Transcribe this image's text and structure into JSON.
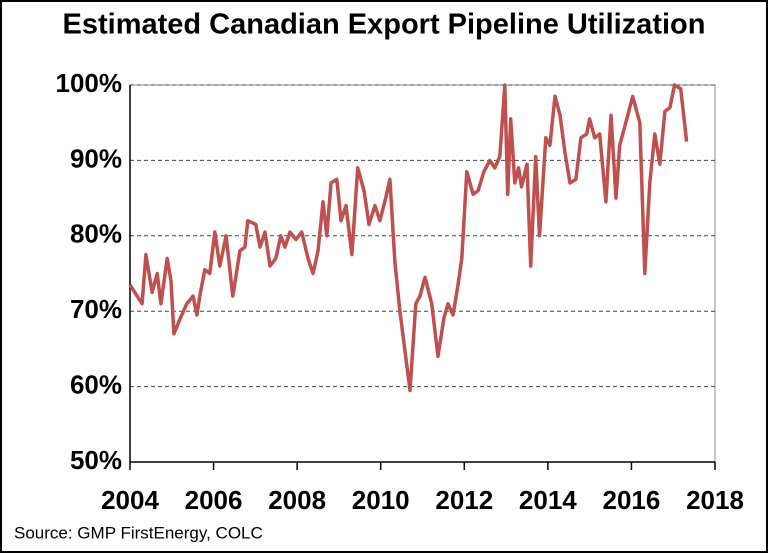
{
  "chart_data": {
    "type": "line",
    "title": "Estimated Canadian Export Pipeline Utilization",
    "source": "Source:  GMP FirstEnergy, COLC",
    "x": [
      2004.0,
      2004.17,
      2004.29,
      2004.38,
      2004.53,
      2004.65,
      2004.74,
      2004.89,
      2004.98,
      2005.05,
      2005.2,
      2005.36,
      2005.51,
      2005.6,
      2005.67,
      2005.79,
      2005.91,
      2006.03,
      2006.15,
      2006.3,
      2006.46,
      2006.63,
      2006.75,
      2006.82,
      2007.01,
      2007.11,
      2007.23,
      2007.35,
      2007.49,
      2007.61,
      2007.71,
      2007.83,
      2007.97,
      2008.11,
      2008.26,
      2008.38,
      2008.5,
      2008.62,
      2008.71,
      2008.81,
      2008.95,
      2009.05,
      2009.17,
      2009.31,
      2009.45,
      2009.6,
      2009.72,
      2009.86,
      2009.98,
      2010.12,
      2010.22,
      2010.34,
      2010.46,
      2010.7,
      2010.84,
      2010.94,
      2011.06,
      2011.22,
      2011.37,
      2011.51,
      2011.61,
      2011.73,
      2011.85,
      2011.94,
      2012.06,
      2012.21,
      2012.33,
      2012.47,
      2012.61,
      2012.73,
      2012.85,
      2012.97,
      2013.04,
      2013.11,
      2013.21,
      2013.3,
      2013.37,
      2013.5,
      2013.59,
      2013.71,
      2013.8,
      2013.95,
      2014.05,
      2014.17,
      2014.29,
      2014.41,
      2014.53,
      2014.67,
      2014.79,
      2014.93,
      2015.0,
      2015.12,
      2015.24,
      2015.39,
      2015.51,
      2015.63,
      2015.72,
      2015.89,
      2016.03,
      2016.2,
      2016.32,
      2016.44,
      2016.56,
      2016.68,
      2016.8,
      2016.92,
      2017.03,
      2017.18,
      2017.32
    ],
    "series": [
      {
        "color": "#c0504d",
        "values": [
          73.5,
          72,
          71,
          77.5,
          72.5,
          75,
          71,
          77,
          74,
          67,
          69,
          71,
          72,
          69.5,
          72,
          75.5,
          75,
          80.5,
          76,
          80,
          72,
          78,
          78.5,
          82,
          81.5,
          78.5,
          80.5,
          76,
          77,
          80,
          78.5,
          80.5,
          79.5,
          80.5,
          77,
          75,
          78,
          84.5,
          80,
          87,
          87.5,
          82,
          84,
          77.5,
          89,
          86,
          81.5,
          84,
          82,
          85,
          87.5,
          76.5,
          70,
          59.5,
          71,
          72,
          74.5,
          71,
          64,
          69,
          71,
          69.5,
          73.5,
          77,
          88.5,
          85.5,
          86,
          88.5,
          90,
          89,
          90.5,
          100,
          85.5,
          95.5,
          87,
          89,
          86.5,
          89.5,
          76,
          90.5,
          80,
          93,
          92,
          98.5,
          96,
          91,
          87,
          87.5,
          93,
          93.5,
          95.5,
          93,
          93.5,
          84.5,
          96,
          85,
          92,
          95.5,
          98.5,
          95,
          75,
          87,
          93.5,
          89.5,
          96.5,
          97,
          100,
          99.5,
          92.5
        ]
      }
    ],
    "xlim": [
      2004,
      2018
    ],
    "xticks": [
      2004,
      2006,
      2008,
      2010,
      2012,
      2014,
      2016,
      2018
    ],
    "ylim": [
      50,
      100
    ],
    "yticks": [
      {
        "value": 50,
        "label": "50%"
      },
      {
        "value": 60,
        "label": "60%"
      },
      {
        "value": 70,
        "label": "70%"
      },
      {
        "value": 80,
        "label": "80%"
      },
      {
        "value": 90,
        "label": "90%"
      },
      {
        "value": 100,
        "label": "100%"
      }
    ],
    "grid": true
  }
}
